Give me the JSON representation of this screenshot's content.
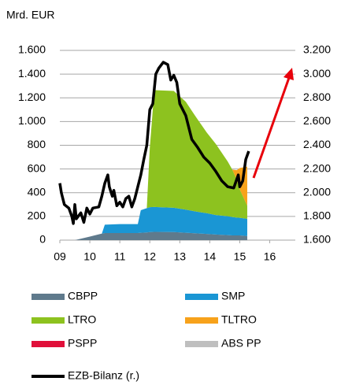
{
  "chart_data": {
    "type": "area",
    "ylabel": "Mrd. EUR",
    "x": [
      2009.0,
      2009.5,
      2010.0,
      2010.4,
      2010.5,
      2011.0,
      2011.6,
      2011.7,
      2011.9,
      2012.0,
      2012.15,
      2012.8,
      2013.2,
      2013.5,
      2013.9,
      2014.2,
      2014.6,
      2014.75,
      2014.9,
      2015.0,
      2015.25
    ],
    "series": [
      {
        "name": "CBPP",
        "color": "#5f7a8c",
        "values": [
          0,
          0,
          30,
          55,
          60,
          60,
          60,
          62,
          65,
          68,
          70,
          68,
          62,
          58,
          52,
          47,
          42,
          40,
          40,
          40,
          35
        ]
      },
      {
        "name": "SMP",
        "color": "#1a96d4",
        "values": [
          0,
          0,
          0,
          0,
          70,
          75,
          75,
          190,
          205,
          210,
          210,
          205,
          195,
          185,
          175,
          165,
          160,
          155,
          150,
          148,
          145
        ]
      },
      {
        "name": "LTRO",
        "color": "#8dc21f",
        "values": [
          0,
          0,
          0,
          0,
          0,
          0,
          0,
          0,
          0,
          500,
          985,
          985,
          910,
          810,
          680,
          600,
          460,
          400,
          320,
          240,
          110
        ]
      },
      {
        "name": "TLTRO",
        "color": "#f7a21b",
        "values": [
          0,
          0,
          0,
          0,
          0,
          0,
          0,
          0,
          0,
          0,
          0,
          0,
          0,
          0,
          0,
          0,
          0,
          0,
          80,
          180,
          330
        ]
      },
      {
        "name": "PSPP",
        "color": "#e0103a",
        "values": [
          0,
          0,
          0,
          0,
          0,
          0,
          0,
          0,
          0,
          0,
          0,
          0,
          0,
          0,
          0,
          0,
          0,
          0,
          0,
          0,
          0
        ]
      },
      {
        "name": "ABS PP",
        "color": "#bfbfbf",
        "values": [
          0,
          0,
          0,
          0,
          0,
          0,
          0,
          0,
          0,
          0,
          0,
          0,
          0,
          0,
          0,
          0,
          0,
          0,
          0,
          0,
          0
        ]
      },
      {
        "name": "EZB-Bilanz (r.)",
        "color": "#000000",
        "type": "line",
        "axis": "y2",
        "x": [
          2009.0,
          2009.05,
          2009.15,
          2009.3,
          2009.4,
          2009.45,
          2009.5,
          2009.55,
          2009.7,
          2009.8,
          2009.9,
          2010.0,
          2010.1,
          2010.3,
          2010.4,
          2010.5,
          2010.6,
          2010.65,
          2010.75,
          2010.8,
          2010.9,
          2011.0,
          2011.1,
          2011.2,
          2011.3,
          2011.4,
          2011.5,
          2011.6,
          2011.7,
          2011.8,
          2011.9,
          2012.0,
          2012.1,
          2012.2,
          2012.3,
          2012.45,
          2012.6,
          2012.7,
          2012.8,
          2012.9,
          2013.0,
          2013.2,
          2013.4,
          2013.6,
          2013.8,
          2014.0,
          2014.2,
          2014.4,
          2014.6,
          2014.8,
          2014.95,
          2015.0,
          2015.1,
          2015.2,
          2015.3
        ],
        "values": [
          2080,
          2000,
          1900,
          1870,
          1800,
          1740,
          1900,
          1780,
          1830,
          1750,
          1870,
          1820,
          1870,
          1880,
          1970,
          2080,
          2150,
          2050,
          1970,
          2020,
          1890,
          1920,
          1880,
          1950,
          1970,
          1880,
          1950,
          2050,
          2150,
          2280,
          2400,
          2700,
          2750,
          3000,
          3050,
          3100,
          3080,
          2950,
          2990,
          2930,
          2750,
          2650,
          2450,
          2380,
          2300,
          2250,
          2180,
          2100,
          2050,
          2040,
          2150,
          2050,
          2100,
          2280,
          2350
        ]
      }
    ],
    "xlim": [
      2009,
      2016.8
    ],
    "xticks": [
      {
        "value": 2009,
        "label": "09"
      },
      {
        "value": 2010,
        "label": "10"
      },
      {
        "value": 2011,
        "label": "11"
      },
      {
        "value": 2012,
        "label": "12"
      },
      {
        "value": 2013,
        "label": "13"
      },
      {
        "value": 2014,
        "label": "14"
      },
      {
        "value": 2015,
        "label": "15"
      },
      {
        "value": 2016,
        "label": "16"
      }
    ],
    "ylim": [
      0,
      1600
    ],
    "yticks": [
      0,
      200,
      400,
      600,
      800,
      {
        "value": 1000,
        "label": "1.000"
      },
      {
        "value": 1200,
        "label": "1.200"
      },
      {
        "value": 1400,
        "label": "1.400"
      },
      {
        "value": 1600,
        "label": "1.600"
      }
    ],
    "y2lim": [
      1600,
      3200
    ],
    "y2ticks": [
      {
        "value": 1600,
        "label": "1.600"
      },
      {
        "value": 1800,
        "label": "1.800"
      },
      {
        "value": 2000,
        "label": "2.000"
      },
      {
        "value": 2200,
        "label": "2.200"
      },
      {
        "value": 2400,
        "label": "2.400"
      },
      {
        "value": 2600,
        "label": "2.600"
      },
      {
        "value": 2800,
        "label": "2.800"
      },
      {
        "value": 3000,
        "label": "3.000"
      },
      {
        "value": 3200,
        "label": "3.200"
      }
    ],
    "grid": true
  }
}
